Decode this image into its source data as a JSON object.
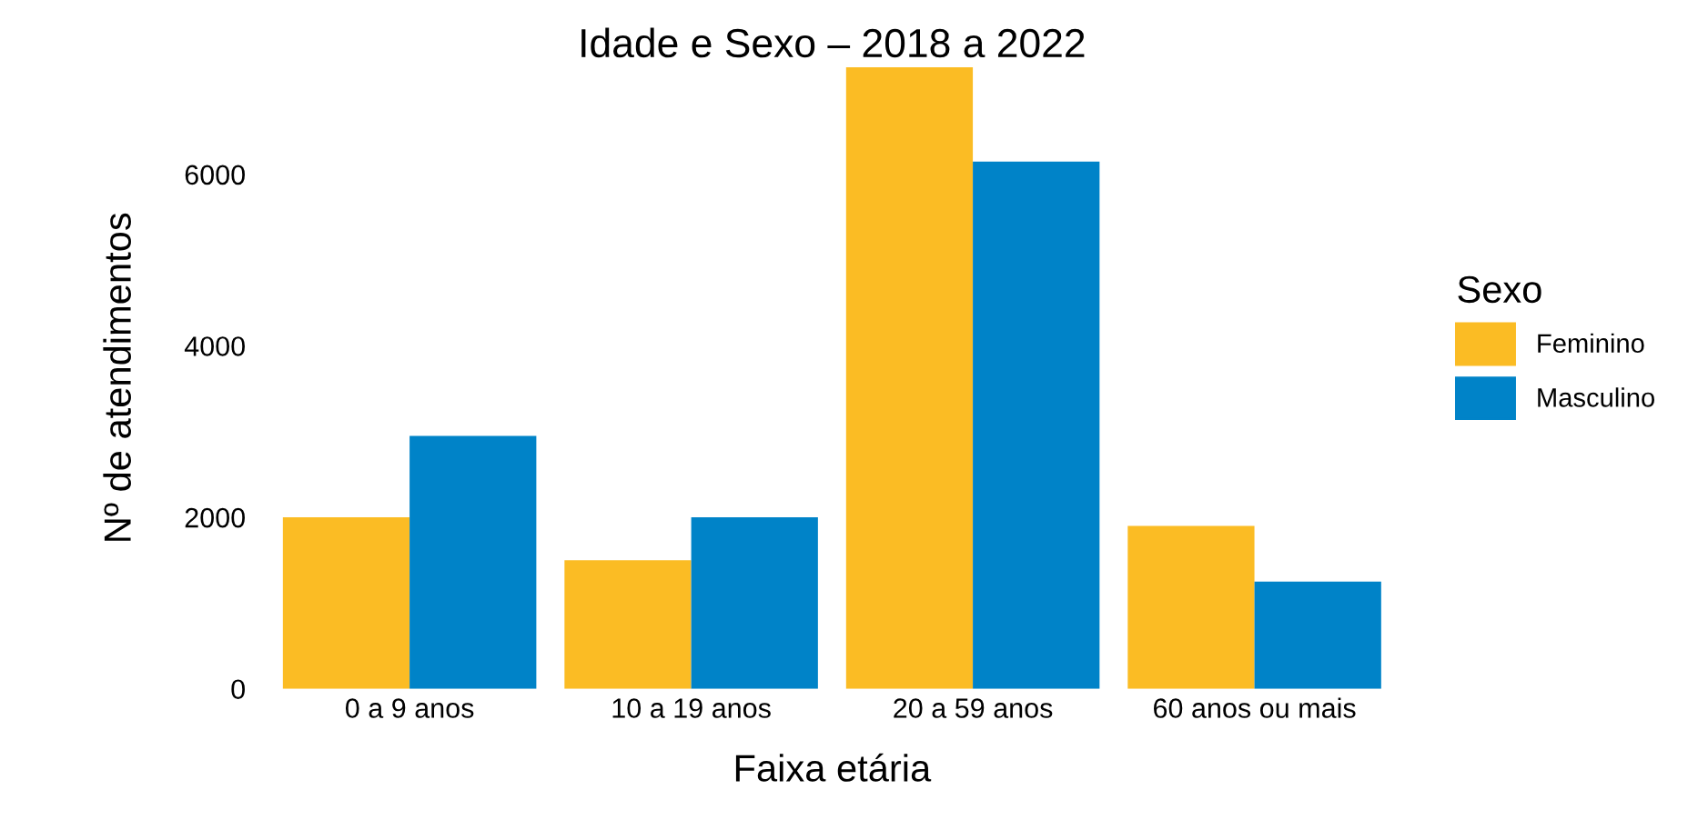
{
  "chart_data": {
    "type": "bar",
    "title": "Idade e Sexo – 2018 a 2022",
    "xlabel": "Faixa etária",
    "ylabel": "Nº de atendimentos",
    "legend_title": "Sexo",
    "categories": [
      "0 a 9 anos",
      "10 a 19 anos",
      "20 a 59 anos",
      "60 anos ou mais"
    ],
    "series": [
      {
        "name": "Feminino",
        "color": "#fbbc24",
        "values": [
          2000,
          1500,
          7250,
          1900
        ]
      },
      {
        "name": "Masculino",
        "color": "#0083c8",
        "values": [
          2950,
          2000,
          6150,
          1250
        ]
      }
    ],
    "ylim": [
      0,
      7250
    ],
    "yticks": [
      0,
      2000,
      4000,
      6000
    ],
    "grid": false,
    "legend": "right"
  }
}
